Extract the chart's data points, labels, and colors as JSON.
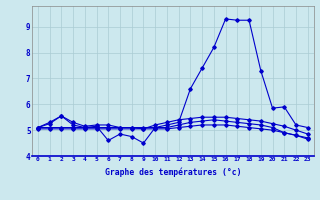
{
  "x": [
    0,
    1,
    2,
    3,
    4,
    5,
    6,
    7,
    8,
    9,
    10,
    11,
    12,
    13,
    14,
    15,
    16,
    17,
    18,
    19,
    20,
    21,
    22,
    23
  ],
  "line1": [
    5.1,
    5.3,
    5.55,
    5.2,
    5.1,
    5.15,
    4.6,
    4.85,
    4.75,
    4.5,
    5.1,
    5.2,
    5.3,
    6.6,
    7.4,
    8.2,
    9.3,
    9.25,
    9.25,
    7.3,
    5.85,
    5.9,
    5.2,
    5.1
  ],
  "line2": [
    5.1,
    5.25,
    5.55,
    5.3,
    5.15,
    5.2,
    5.2,
    5.1,
    5.1,
    5.05,
    5.2,
    5.3,
    5.4,
    5.45,
    5.5,
    5.5,
    5.5,
    5.45,
    5.4,
    5.35,
    5.25,
    5.15,
    5.0,
    4.85
  ],
  "line3": [
    5.1,
    5.1,
    5.1,
    5.1,
    5.1,
    5.1,
    5.1,
    5.1,
    5.1,
    5.1,
    5.1,
    5.1,
    5.2,
    5.3,
    5.35,
    5.4,
    5.35,
    5.3,
    5.25,
    5.2,
    5.1,
    4.9,
    4.8,
    4.7
  ],
  "line4": [
    5.05,
    5.05,
    5.05,
    5.05,
    5.05,
    5.05,
    5.05,
    5.05,
    5.05,
    5.05,
    5.05,
    5.05,
    5.1,
    5.15,
    5.2,
    5.2,
    5.2,
    5.15,
    5.1,
    5.05,
    5.0,
    4.9,
    4.8,
    4.65
  ],
  "line_color": "#0000cc",
  "bg_color": "#cce8ee",
  "grid_color": "#aaccd4",
  "xlabel": "Graphe des températures (°c)",
  "ylim": [
    4.0,
    9.8
  ],
  "xlim": [
    -0.5,
    23.5
  ],
  "yticks": [
    4,
    5,
    6,
    7,
    8,
    9
  ],
  "xticks": [
    0,
    1,
    2,
    3,
    4,
    5,
    6,
    7,
    8,
    9,
    10,
    11,
    12,
    13,
    14,
    15,
    16,
    17,
    18,
    19,
    20,
    21,
    22,
    23
  ]
}
